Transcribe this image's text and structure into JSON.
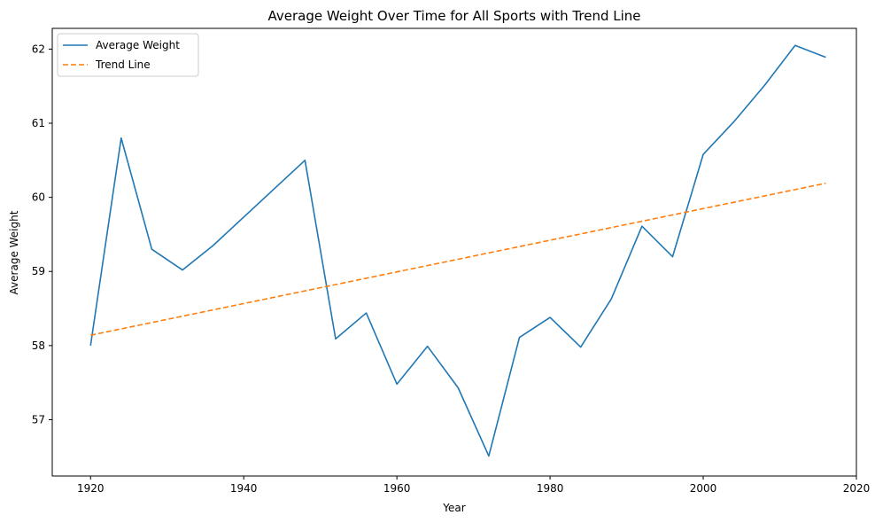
{
  "chart_data": {
    "type": "line",
    "title": "Average Weight Over Time for All Sports with Trend Line",
    "xlabel": "Year",
    "ylabel": "Average Weight",
    "xlim": [
      1915,
      2020
    ],
    "ylim": [
      56.24,
      62.28
    ],
    "x_ticks": [
      1920,
      1940,
      1960,
      1980,
      2000,
      2020
    ],
    "y_ticks": [
      57,
      58,
      59,
      60,
      61,
      62
    ],
    "grid": false,
    "legend_position": "top-left",
    "series": [
      {
        "name": "Average Weight",
        "color": "#1f77b4",
        "style": "solid",
        "x": [
          1920,
          1924,
          1928,
          1932,
          1936,
          1948,
          1952,
          1956,
          1960,
          1964,
          1968,
          1972,
          1976,
          1980,
          1984,
          1988,
          1992,
          1996,
          2000,
          2004,
          2008,
          2012,
          2016
        ],
        "y": [
          58.0,
          60.8,
          59.3,
          59.02,
          59.35,
          60.5,
          58.09,
          58.44,
          57.48,
          57.99,
          57.43,
          56.51,
          58.11,
          58.38,
          57.98,
          58.63,
          59.61,
          59.2,
          60.58,
          61.02,
          61.51,
          62.05,
          61.89
        ]
      },
      {
        "name": "Trend Line",
        "color": "#ff7f0e",
        "style": "dashed",
        "x": [
          1920,
          2016
        ],
        "y": [
          58.14,
          60.19
        ]
      }
    ]
  }
}
